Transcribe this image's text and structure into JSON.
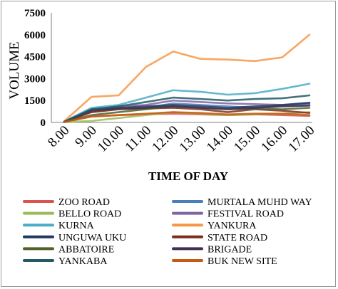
{
  "chart_data": {
    "type": "line",
    "title": "",
    "xlabel": "TIME OF DAY",
    "ylabel": "VOLUME",
    "categories": [
      "8.00",
      "9.00",
      "10.00",
      "11.00",
      "12.00",
      "13.00",
      "14.00",
      "15.00",
      "16.00",
      "17.00"
    ],
    "y_ticks": [
      "0",
      "1500",
      "3000",
      "4500",
      "6000",
      "7500"
    ],
    "ylim": [
      0,
      7500
    ],
    "grid": false,
    "legend_position": "bottom",
    "series": [
      {
        "name": "ZOO ROAD",
        "color": "#d9534f",
        "values": [
          30,
          400,
          500,
          550,
          600,
          550,
          500,
          550,
          500,
          450
        ]
      },
      {
        "name": "MURTALA MUHD WAY",
        "color": "#4a7ebb",
        "values": [
          40,
          700,
          900,
          1000,
          1300,
          1200,
          1100,
          1000,
          1100,
          1200
        ]
      },
      {
        "name": "BELLO ROAD",
        "color": "#9bbb59",
        "values": [
          20,
          100,
          300,
          500,
          700,
          600,
          500,
          550,
          600,
          700
        ]
      },
      {
        "name": "FESTIVAL ROAD",
        "color": "#8064a2",
        "values": [
          40,
          900,
          1100,
          1200,
          1500,
          1400,
          1300,
          1250,
          1200,
          1300
        ]
      },
      {
        "name": "KURNA",
        "color": "#4bacc6",
        "values": [
          60,
          1000,
          1200,
          1700,
          2200,
          2100,
          1900,
          2000,
          2300,
          2650
        ]
      },
      {
        "name": "YANKURA",
        "color": "#f79646",
        "values": [
          80,
          1750,
          1850,
          3800,
          4850,
          4350,
          4300,
          4200,
          4450,
          6000
        ]
      },
      {
        "name": "UNGUWA UKU",
        "color": "#1f3864",
        "values": [
          40,
          800,
          1000,
          1100,
          1200,
          1100,
          1000,
          1100,
          1200,
          1350
        ]
      },
      {
        "name": "STATE ROAD",
        "color": "#7b2d1e",
        "values": [
          30,
          700,
          900,
          950,
          1000,
          900,
          700,
          900,
          800,
          650
        ]
      },
      {
        "name": "ABBATOIRE",
        "color": "#4f6228",
        "values": [
          30,
          500,
          700,
          900,
          1100,
          1000,
          900,
          950,
          900,
          1000
        ]
      },
      {
        "name": "BRIGADE",
        "color": "#3f3151",
        "values": [
          40,
          850,
          950,
          1000,
          1100,
          1000,
          900,
          1000,
          1100,
          1150
        ]
      },
      {
        "name": "YANKABA",
        "color": "#215967",
        "values": [
          50,
          900,
          1100,
          1400,
          1700,
          1600,
          1500,
          1600,
          1650,
          1850
        ]
      },
      {
        "name": "BUK NEW SITE",
        "color": "#c55a11",
        "values": [
          30,
          400,
          500,
          600,
          700,
          650,
          550,
          600,
          600,
          500
        ]
      }
    ]
  }
}
